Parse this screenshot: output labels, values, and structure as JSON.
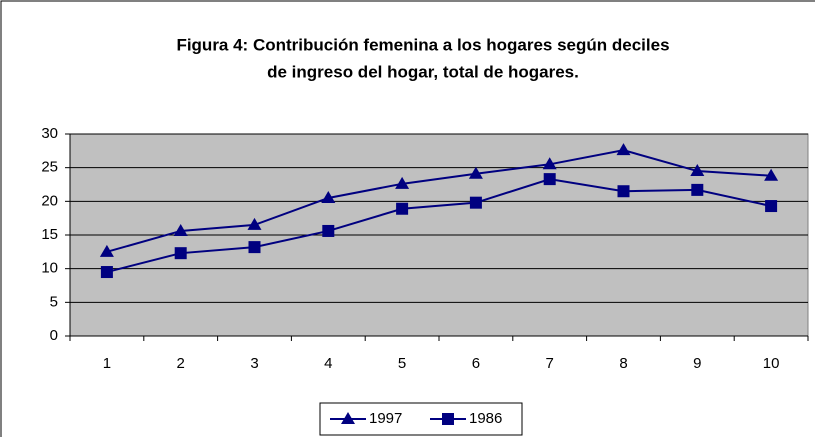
{
  "chart_data": {
    "type": "line",
    "title": [
      "Figura 4: Contribución femenina a los hogares según deciles",
      "de ingreso del hogar, total de hogares."
    ],
    "categories": [
      "1",
      "2",
      "3",
      "4",
      "5",
      "6",
      "7",
      "8",
      "9",
      "10"
    ],
    "series": [
      {
        "name": "1997",
        "color": "#000080",
        "marker": "triangle",
        "values": [
          12.5,
          15.6,
          16.5,
          20.5,
          22.6,
          24.1,
          25.5,
          27.6,
          24.5,
          23.8
        ]
      },
      {
        "name": "1986",
        "color": "#000080",
        "marker": "square",
        "values": [
          9.5,
          12.3,
          13.2,
          15.6,
          18.9,
          19.8,
          23.3,
          21.5,
          21.7,
          19.3
        ]
      }
    ],
    "ylim": [
      0,
      30
    ],
    "yticks": [
      0,
      5,
      10,
      15,
      20,
      25,
      30
    ],
    "grid": true,
    "plot_background": "#c0c0c0",
    "legend": "bottom"
  }
}
